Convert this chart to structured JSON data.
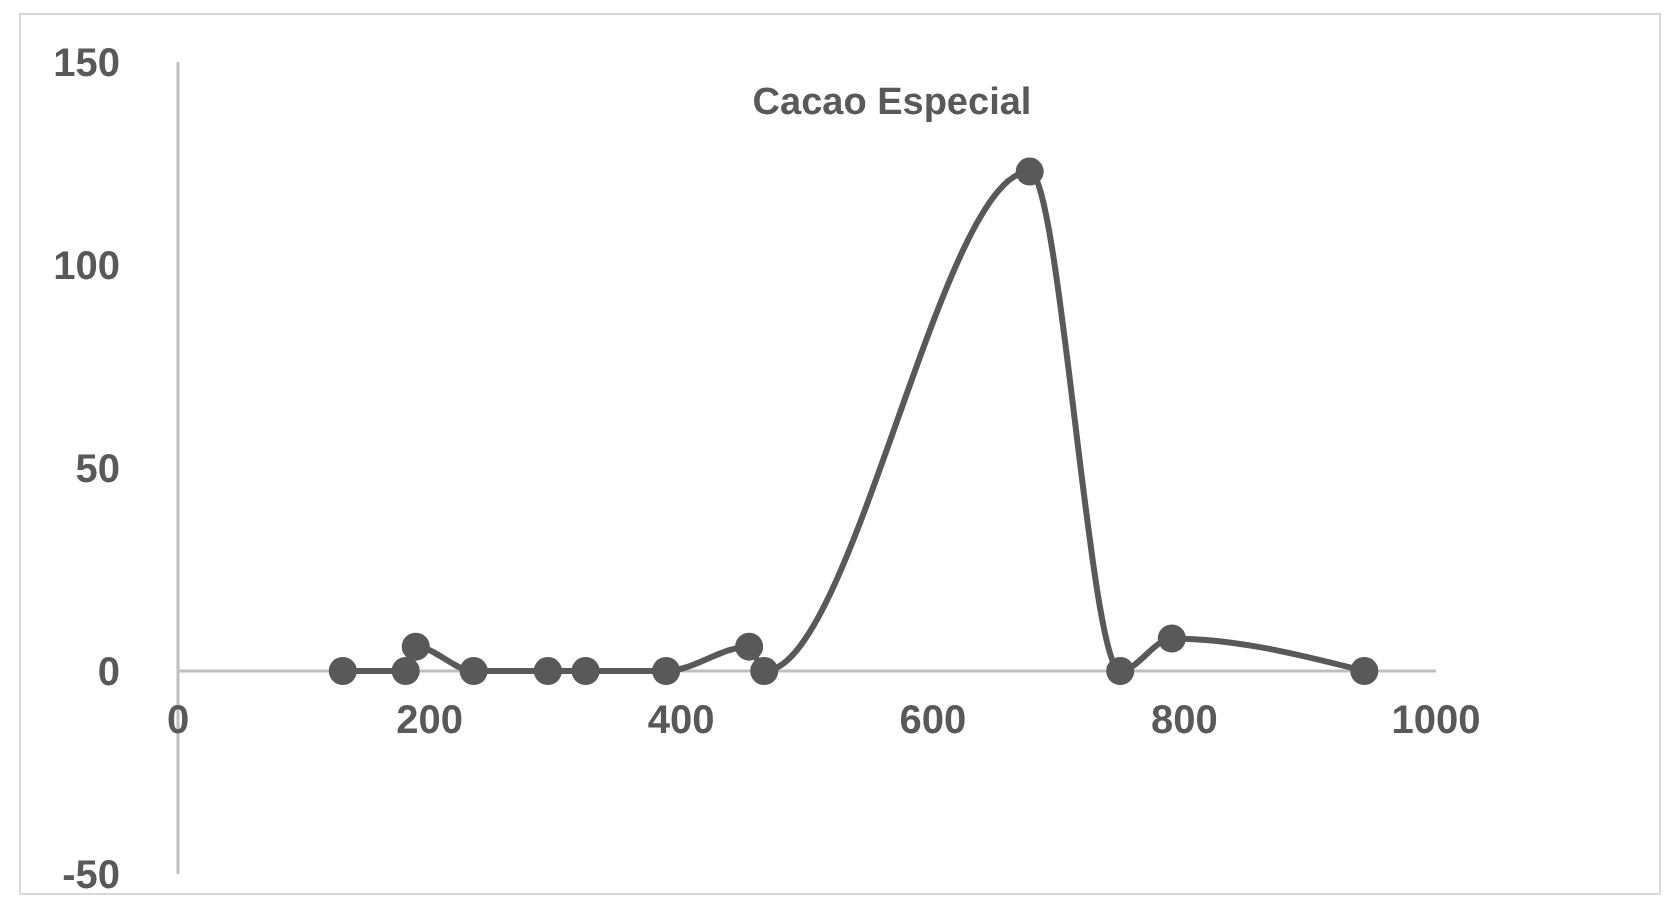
{
  "chart_data": {
    "type": "line",
    "title": "Cacao Especial",
    "x": [
      131,
      181,
      189,
      235,
      294,
      324,
      388,
      454,
      466,
      677,
      749,
      790,
      943
    ],
    "series": [
      {
        "color": "#595959",
        "values": [
          0,
          0,
          6,
          0,
          0,
          0,
          0,
          6,
          0,
          123,
          0,
          8,
          0
        ]
      }
    ],
    "xlim": [
      0,
      1000
    ],
    "xticks": [
      0,
      200,
      400,
      600,
      800,
      1000
    ],
    "ylim": [
      -50,
      150
    ],
    "yticks": [
      -50,
      0,
      50,
      100,
      150
    ],
    "grid": false,
    "marker": "circle",
    "line_style": "solid"
  }
}
